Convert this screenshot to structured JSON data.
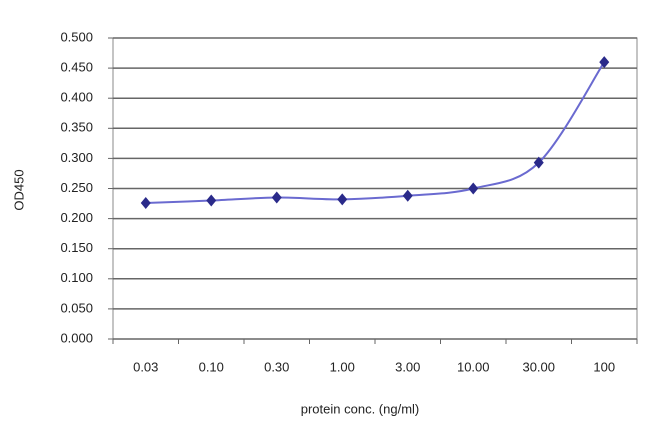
{
  "chart_data": {
    "type": "line",
    "y_label": "OD450",
    "x_label": "protein conc. (ng/ml)",
    "categories": [
      "0.03",
      "0.10",
      "0.30",
      "1.00",
      "3.00",
      "10.00",
      "30.00",
      "100"
    ],
    "values": [
      0.226,
      0.23,
      0.235,
      0.232,
      0.238,
      0.25,
      0.293,
      0.46
    ],
    "color": "#6a6ad0",
    "marker_color": "#2a2a8a",
    "smooth": true,
    "ylim": [
      0,
      0.5
    ],
    "yticks": [
      {
        "value": 0,
        "label": "0.000"
      },
      {
        "value": 0.05,
        "label": "0.050"
      },
      {
        "value": 0.1,
        "label": "0.100"
      },
      {
        "value": 0.15,
        "label": "0.150"
      },
      {
        "value": 0.2,
        "label": "0.200"
      },
      {
        "value": 0.25,
        "label": "0.250"
      },
      {
        "value": 0.3,
        "label": "0.300"
      },
      {
        "value": 0.35,
        "label": "0.350"
      },
      {
        "value": 0.4,
        "label": "0.400"
      },
      {
        "value": 0.45,
        "label": "0.450"
      },
      {
        "value": 0.5,
        "label": "0.500"
      }
    ],
    "grid": true
  }
}
